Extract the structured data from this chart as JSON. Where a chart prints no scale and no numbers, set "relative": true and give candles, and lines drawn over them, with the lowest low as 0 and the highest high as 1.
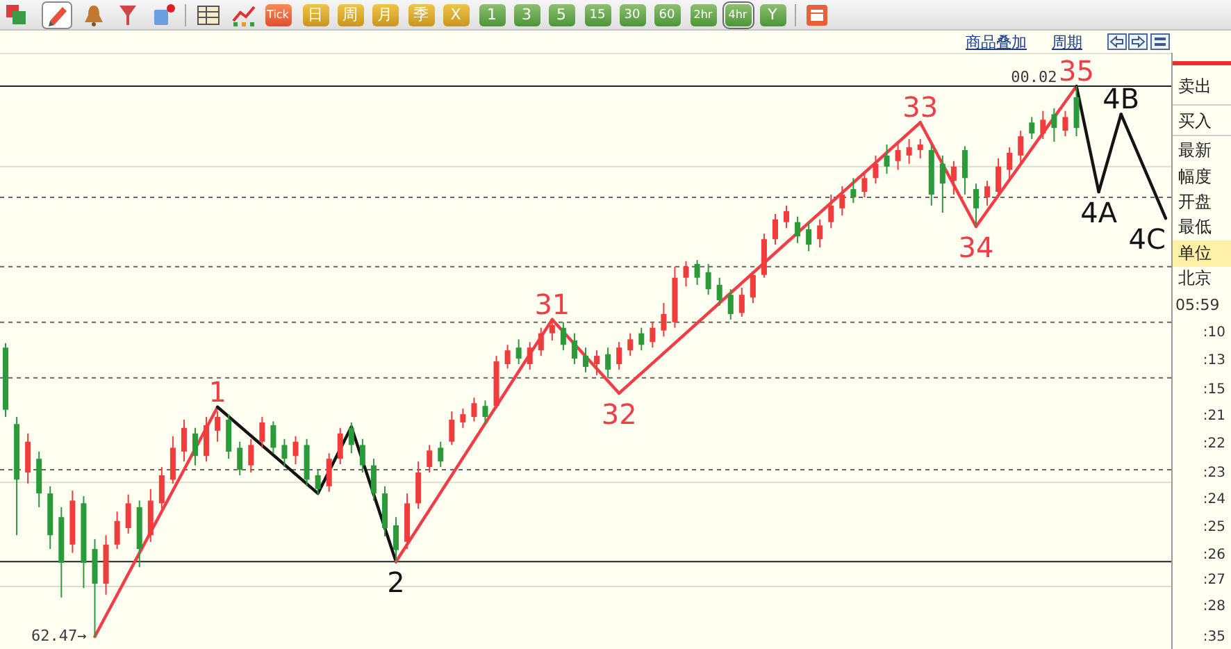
{
  "chart_data": {
    "type": "candlestick",
    "relative": true,
    "categories": [
      null,
      null,
      null,
      null,
      null,
      null,
      null,
      null,
      null,
      null,
      null,
      null,
      null,
      null,
      null,
      null,
      null,
      null,
      null,
      null,
      null,
      null,
      null,
      null,
      null,
      null,
      null,
      null,
      null,
      null,
      null,
      null,
      null,
      null,
      null,
      null,
      null,
      null,
      null,
      null,
      null,
      null,
      null,
      null,
      null,
      null,
      null,
      null,
      null,
      null,
      null,
      null,
      null,
      null,
      null,
      null,
      null,
      null,
      null,
      null,
      null,
      null,
      null,
      null,
      null,
      null,
      null,
      null,
      null,
      null,
      null,
      null,
      null,
      null,
      null,
      null,
      null,
      null,
      null,
      null,
      null,
      null,
      null,
      null,
      null,
      null,
      null,
      null,
      null,
      null,
      null,
      null,
      null,
      null,
      null,
      null,
      null,
      null,
      null,
      null,
      null,
      null,
      null,
      null,
      null
    ],
    "ohlc": [
      [
        0.525,
        0.533,
        0.399,
        0.412
      ],
      [
        0.386,
        0.399,
        0.184,
        0.285
      ],
      [
        0.298,
        0.369,
        0.278,
        0.354
      ],
      [
        0.323,
        0.336,
        0.235,
        0.26
      ],
      [
        0.26,
        0.273,
        0.159,
        0.184
      ],
      [
        0.217,
        0.235,
        0.071,
        0.134
      ],
      [
        0.167,
        0.265,
        0.152,
        0.247
      ],
      [
        0.242,
        0.255,
        0.088,
        0.134
      ],
      [
        0.159,
        0.177,
        0,
        0.096
      ],
      [
        0.096,
        0.184,
        0.076,
        0.167
      ],
      [
        0.167,
        0.227,
        0.159,
        0.21
      ],
      [
        0.197,
        0.258,
        0.187,
        0.242
      ],
      [
        0.235,
        0.247,
        0.126,
        0.159
      ],
      [
        0.184,
        0.268,
        0.172,
        0.247
      ],
      [
        0.242,
        0.308,
        0.232,
        0.293
      ],
      [
        0.285,
        0.364,
        0.278,
        0.343
      ],
      [
        0.336,
        0.394,
        0.318,
        0.379
      ],
      [
        0.369,
        0.379,
        0.311,
        0.328
      ],
      [
        0.328,
        0.399,
        0.318,
        0.384
      ],
      [
        0.374,
        0.409,
        0.354,
        0.399
      ],
      [
        0.394,
        0.404,
        0.323,
        0.336
      ],
      [
        0.343,
        0.354,
        0.293,
        0.303
      ],
      [
        0.311,
        0.359,
        0.298,
        0.348
      ],
      [
        0.354,
        0.399,
        0.343,
        0.389
      ],
      [
        0.384,
        0.391,
        0.333,
        0.343
      ],
      [
        0.348,
        0.359,
        0.308,
        0.323
      ],
      [
        0.328,
        0.364,
        0.313,
        0.354
      ],
      [
        0.348,
        0.359,
        0.273,
        0.285
      ],
      [
        0.293,
        0.303,
        0.258,
        0.268
      ],
      [
        0.273,
        0.333,
        0.263,
        0.323
      ],
      [
        0.323,
        0.379,
        0.313,
        0.369
      ],
      [
        0.379,
        0.389,
        0.333,
        0.348
      ],
      [
        0.348,
        0.359,
        0.298,
        0.311
      ],
      [
        0.311,
        0.323,
        0.247,
        0.26
      ],
      [
        0.26,
        0.273,
        0.182,
        0.197
      ],
      [
        0.202,
        0.217,
        0.136,
        0.157
      ],
      [
        0.172,
        0.26,
        0.159,
        0.242
      ],
      [
        0.242,
        0.318,
        0.232,
        0.298
      ],
      [
        0.308,
        0.348,
        0.298,
        0.338
      ],
      [
        0.343,
        0.354,
        0.308,
        0.318
      ],
      [
        0.354,
        0.409,
        0.348,
        0.394
      ],
      [
        0.389,
        0.414,
        0.379,
        0.404
      ],
      [
        0.399,
        0.434,
        0.391,
        0.424
      ],
      [
        0.419,
        0.429,
        0.386,
        0.399
      ],
      [
        0.419,
        0.51,
        0.414,
        0.5
      ],
      [
        0.495,
        0.53,
        0.487,
        0.52
      ],
      [
        0.525,
        0.54,
        0.495,
        0.505
      ],
      [
        0.495,
        0.535,
        0.485,
        0.525
      ],
      [
        0.52,
        0.561,
        0.51,
        0.551
      ],
      [
        0.551,
        0.576,
        0.538,
        0.566
      ],
      [
        0.561,
        0.571,
        0.52,
        0.53
      ],
      [
        0.538,
        0.551,
        0.495,
        0.505
      ],
      [
        0.51,
        0.525,
        0.48,
        0.49
      ],
      [
        0.495,
        0.52,
        0.475,
        0.51
      ],
      [
        0.513,
        0.525,
        0.47,
        0.485
      ],
      [
        0.495,
        0.535,
        0.485,
        0.525
      ],
      [
        0.52,
        0.551,
        0.51,
        0.54
      ],
      [
        0.551,
        0.561,
        0.52,
        0.53
      ],
      [
        0.535,
        0.571,
        0.525,
        0.561
      ],
      [
        0.556,
        0.606,
        0.545,
        0.586
      ],
      [
        0.571,
        0.672,
        0.561,
        0.652
      ],
      [
        0.652,
        0.682,
        0.636,
        0.672
      ],
      [
        0.677,
        0.684,
        0.639,
        0.652
      ],
      [
        0.662,
        0.677,
        0.621,
        0.631
      ],
      [
        0.639,
        0.652,
        0.601,
        0.611
      ],
      [
        0.621,
        0.631,
        0.576,
        0.586
      ],
      [
        0.588,
        0.634,
        0.581,
        0.621
      ],
      [
        0.616,
        0.664,
        0.606,
        0.657
      ],
      [
        0.657,
        0.732,
        0.652,
        0.722
      ],
      [
        0.722,
        0.768,
        0.712,
        0.758
      ],
      [
        0.753,
        0.783,
        0.742,
        0.773
      ],
      [
        0.753,
        0.763,
        0.715,
        0.727
      ],
      [
        0.74,
        0.753,
        0.7,
        0.712
      ],
      [
        0.722,
        0.758,
        0.707,
        0.747
      ],
      [
        0.753,
        0.803,
        0.742,
        0.783
      ],
      [
        0.778,
        0.818,
        0.765,
        0.803
      ],
      [
        0.813,
        0.833,
        0.788,
        0.798
      ],
      [
        0.808,
        0.843,
        0.798,
        0.833
      ],
      [
        0.833,
        0.874,
        0.823,
        0.859
      ],
      [
        0.874,
        0.894,
        0.841,
        0.854
      ],
      [
        0.864,
        0.899,
        0.848,
        0.884
      ],
      [
        0.874,
        0.904,
        0.859,
        0.889
      ],
      [
        0.884,
        0.904,
        0.869,
        0.894
      ],
      [
        0.884,
        0.894,
        0.783,
        0.803
      ],
      [
        0.859,
        0.874,
        0.77,
        0.823
      ],
      [
        0.828,
        0.864,
        0.803,
        0.854
      ],
      [
        0.884,
        0.891,
        0.803,
        0.833
      ],
      [
        0.813,
        0.823,
        0.747,
        0.778
      ],
      [
        0.798,
        0.828,
        0.783,
        0.818
      ],
      [
        0.808,
        0.869,
        0.798,
        0.854
      ],
      [
        0.848,
        0.889,
        0.828,
        0.879
      ],
      [
        0.874,
        0.919,
        0.859,
        0.909
      ],
      [
        0.934,
        0.944,
        0.904,
        0.914
      ],
      [
        0.914,
        0.955,
        0.904,
        0.939
      ],
      [
        0.949,
        0.96,
        0.899,
        0.924
      ],
      [
        0.919,
        0.955,
        0.909,
        0.944
      ],
      [
        0.98,
        1,
        0.909,
        0.924
      ],
      null,
      null,
      null,
      null,
      null,
      null,
      null,
      null
    ],
    "colors": [
      "#2b9a3a",
      "#2b9a3a",
      "#f03c3c",
      "#2b9a3a",
      "#2b9a3a",
      "#2b9a3a",
      "#f03c3c",
      "#2b9a3a",
      "#2b9a3a",
      "#f03c3c",
      "#f03c3c",
      "#f03c3c",
      "#2b9a3a",
      "#f03c3c",
      "#f03c3c",
      "#f03c3c",
      "#f03c3c",
      "#2b9a3a",
      "#f03c3c",
      "#f03c3c",
      "#2b9a3a",
      "#2b9a3a",
      "#f03c3c",
      "#f03c3c",
      "#2b9a3a",
      "#2b9a3a",
      "#f03c3c",
      "#2b9a3a",
      "#2b9a3a",
      "#f03c3c",
      "#f03c3c",
      "#2b9a3a",
      "#2b9a3a",
      "#2b9a3a",
      "#2b9a3a",
      "#2b9a3a",
      "#f03c3c",
      "#f03c3c",
      "#f03c3c",
      "#2b9a3a",
      "#f03c3c",
      "#f03c3c",
      "#f03c3c",
      "#2b9a3a",
      "#f03c3c",
      "#f03c3c",
      "#2b9a3a",
      "#f03c3c",
      "#f03c3c",
      "#f03c3c",
      "#2b9a3a",
      "#2b9a3a",
      "#2b9a3a",
      "#f03c3c",
      "#2b9a3a",
      "#f03c3c",
      "#f03c3c",
      "#2b9a3a",
      "#f03c3c",
      "#f03c3c",
      "#f03c3c",
      "#f03c3c",
      "#2b9a3a",
      "#2b9a3a",
      "#2b9a3a",
      "#2b9a3a",
      "#f03c3c",
      "#f03c3c",
      "#f03c3c",
      "#f03c3c",
      "#f03c3c",
      "#2b9a3a",
      "#2b9a3a",
      "#f03c3c",
      "#f03c3c",
      "#f03c3c",
      "#2b9a3a",
      "#f03c3c",
      "#f03c3c",
      "#2b9a3a",
      "#f03c3c",
      "#f03c3c",
      "#f03c3c",
      "#2b9a3a",
      "#2b9a3a",
      "#f03c3c",
      "#2b9a3a",
      "#2b9a3a",
      "#f03c3c",
      "#f03c3c",
      "#f03c3c",
      "#f03c3c",
      "#2b9a3a",
      "#f03c3c",
      "#2b9a3a",
      "#f03c3c",
      "#2b9a3a",
      null,
      null,
      null,
      null,
      null,
      null,
      null,
      null
    ],
    "series": [
      {
        "type": "line",
        "name": "1",
        "color": "#f23c46",
        "values": [
          null,
          null,
          null,
          null,
          null,
          null,
          null,
          null,
          0,
          null,
          null,
          null,
          null,
          null,
          null,
          null,
          null,
          null,
          null,
          0.417,
          null,
          null,
          null,
          null,
          null,
          null,
          null,
          null,
          null,
          null,
          null,
          null,
          null,
          null,
          null,
          null,
          null,
          null,
          null,
          null,
          null,
          null,
          null,
          null,
          null,
          null,
          null,
          null,
          null,
          null,
          null,
          null,
          null,
          null,
          null,
          null,
          null,
          null,
          null,
          null,
          null,
          null,
          null,
          null,
          null,
          null,
          null,
          null,
          null,
          null,
          null,
          null,
          null,
          null,
          null,
          null,
          null,
          null,
          null,
          null,
          null,
          null,
          null,
          null,
          null,
          null,
          null,
          null,
          null,
          null,
          null,
          null,
          null,
          null,
          null,
          null,
          null,
          null,
          null,
          null,
          null,
          null,
          null,
          null,
          null
        ]
      },
      {
        "type": "line",
        "name": "2",
        "color": "#141414",
        "values": [
          null,
          null,
          null,
          null,
          null,
          null,
          null,
          null,
          null,
          null,
          null,
          null,
          null,
          null,
          null,
          null,
          null,
          null,
          null,
          0.417,
          null,
          null,
          null,
          null,
          null,
          null,
          null,
          null,
          0.26,
          null,
          null,
          0.381,
          null,
          null,
          null,
          0.136,
          null,
          null,
          null,
          null,
          null,
          null,
          null,
          null,
          null,
          null,
          null,
          null,
          null,
          null,
          null,
          null,
          null,
          null,
          null,
          null,
          null,
          null,
          null,
          null,
          null,
          null,
          null,
          null,
          null,
          null,
          null,
          null,
          null,
          null,
          null,
          null,
          null,
          null,
          null,
          null,
          null,
          null,
          null,
          null,
          null,
          null,
          null,
          null,
          null,
          null,
          null,
          null,
          null,
          null,
          null,
          null,
          null,
          null,
          null,
          null,
          null,
          null,
          null,
          null,
          null,
          null,
          null,
          null,
          null
        ]
      },
      {
        "type": "line",
        "name": "31",
        "color": "#f23c46",
        "values": [
          null,
          null,
          null,
          null,
          null,
          null,
          null,
          null,
          null,
          null,
          null,
          null,
          null,
          null,
          null,
          null,
          null,
          null,
          null,
          null,
          null,
          null,
          null,
          null,
          null,
          null,
          null,
          null,
          null,
          null,
          null,
          null,
          null,
          null,
          null,
          0.136,
          null,
          null,
          null,
          null,
          null,
          null,
          null,
          null,
          null,
          null,
          null,
          null,
          null,
          0.576,
          null,
          null,
          null,
          null,
          null,
          null,
          null,
          null,
          null,
          null,
          null,
          null,
          null,
          null,
          null,
          null,
          null,
          null,
          null,
          null,
          null,
          null,
          null,
          null,
          null,
          null,
          null,
          null,
          null,
          null,
          null,
          null,
          null,
          null,
          null,
          null,
          null,
          null,
          null,
          null,
          null,
          null,
          null,
          null,
          null,
          null,
          null,
          null,
          null,
          null,
          null,
          null,
          null,
          null,
          null
        ]
      },
      {
        "type": "line",
        "name": "32",
        "color": "#f23c46",
        "values": [
          null,
          null,
          null,
          null,
          null,
          null,
          null,
          null,
          null,
          null,
          null,
          null,
          null,
          null,
          null,
          null,
          null,
          null,
          null,
          null,
          null,
          null,
          null,
          null,
          null,
          null,
          null,
          null,
          null,
          null,
          null,
          null,
          null,
          null,
          null,
          null,
          null,
          null,
          null,
          null,
          null,
          null,
          null,
          null,
          null,
          null,
          null,
          null,
          null,
          0.576,
          null,
          null,
          null,
          null,
          null,
          0.442,
          null,
          null,
          null,
          null,
          null,
          null,
          null,
          null,
          null,
          null,
          null,
          null,
          null,
          null,
          null,
          null,
          null,
          null,
          null,
          null,
          null,
          null,
          null,
          null,
          null,
          null,
          null,
          null,
          null,
          null,
          null,
          null,
          null,
          null,
          null,
          null,
          null,
          null,
          null,
          null,
          null,
          null,
          null,
          null,
          null,
          null,
          null,
          null,
          null
        ]
      },
      {
        "type": "line",
        "name": "33",
        "color": "#f23c46",
        "values": [
          null,
          null,
          null,
          null,
          null,
          null,
          null,
          null,
          null,
          null,
          null,
          null,
          null,
          null,
          null,
          null,
          null,
          null,
          null,
          null,
          null,
          null,
          null,
          null,
          null,
          null,
          null,
          null,
          null,
          null,
          null,
          null,
          null,
          null,
          null,
          null,
          null,
          null,
          null,
          null,
          null,
          null,
          null,
          null,
          null,
          null,
          null,
          null,
          null,
          null,
          null,
          null,
          null,
          null,
          null,
          0.442,
          null,
          null,
          null,
          null,
          null,
          null,
          null,
          null,
          null,
          null,
          null,
          null,
          null,
          null,
          null,
          null,
          null,
          null,
          null,
          null,
          null,
          null,
          null,
          null,
          null,
          null,
          0.934,
          null,
          null,
          null,
          null,
          null,
          null,
          null,
          null,
          null,
          null,
          null,
          null,
          null,
          null,
          null,
          null,
          null,
          null,
          null,
          null,
          null,
          null
        ]
      },
      {
        "type": "line",
        "name": "34",
        "color": "#f23c46",
        "values": [
          null,
          null,
          null,
          null,
          null,
          null,
          null,
          null,
          null,
          null,
          null,
          null,
          null,
          null,
          null,
          null,
          null,
          null,
          null,
          null,
          null,
          null,
          null,
          null,
          null,
          null,
          null,
          null,
          null,
          null,
          null,
          null,
          null,
          null,
          null,
          null,
          null,
          null,
          null,
          null,
          null,
          null,
          null,
          null,
          null,
          null,
          null,
          null,
          null,
          null,
          null,
          null,
          null,
          null,
          null,
          null,
          null,
          null,
          null,
          null,
          null,
          null,
          null,
          null,
          null,
          null,
          null,
          null,
          null,
          null,
          null,
          null,
          null,
          null,
          null,
          null,
          null,
          null,
          null,
          null,
          null,
          null,
          0.934,
          null,
          null,
          null,
          null,
          0.745,
          null,
          null,
          null,
          null,
          null,
          null,
          null,
          null,
          null,
          null,
          null,
          null,
          null,
          null,
          null,
          null,
          null
        ]
      },
      {
        "type": "line",
        "name": "35",
        "color": "#f23c46",
        "values": [
          null,
          null,
          null,
          null,
          null,
          null,
          null,
          null,
          null,
          null,
          null,
          null,
          null,
          null,
          null,
          null,
          null,
          null,
          null,
          null,
          null,
          null,
          null,
          null,
          null,
          null,
          null,
          null,
          null,
          null,
          null,
          null,
          null,
          null,
          null,
          null,
          null,
          null,
          null,
          null,
          null,
          null,
          null,
          null,
          null,
          null,
          null,
          null,
          null,
          null,
          null,
          null,
          null,
          null,
          null,
          null,
          null,
          null,
          null,
          null,
          null,
          null,
          null,
          null,
          null,
          null,
          null,
          null,
          null,
          null,
          null,
          null,
          null,
          null,
          null,
          null,
          null,
          null,
          null,
          null,
          null,
          null,
          null,
          null,
          null,
          null,
          null,
          0.745,
          null,
          null,
          null,
          null,
          null,
          null,
          null,
          null,
          1,
          null,
          null,
          null,
          null,
          null,
          null,
          null,
          null
        ]
      },
      {
        "type": "line",
        "name": "4A",
        "color": "#141414",
        "values": [
          null,
          null,
          null,
          null,
          null,
          null,
          null,
          null,
          null,
          null,
          null,
          null,
          null,
          null,
          null,
          null,
          null,
          null,
          null,
          null,
          null,
          null,
          null,
          null,
          null,
          null,
          null,
          null,
          null,
          null,
          null,
          null,
          null,
          null,
          null,
          null,
          null,
          null,
          null,
          null,
          null,
          null,
          null,
          null,
          null,
          null,
          null,
          null,
          null,
          null,
          null,
          null,
          null,
          null,
          null,
          null,
          null,
          null,
          null,
          null,
          null,
          null,
          null,
          null,
          null,
          null,
          null,
          null,
          null,
          null,
          null,
          null,
          null,
          null,
          null,
          null,
          null,
          null,
          null,
          null,
          null,
          null,
          null,
          null,
          null,
          null,
          null,
          null,
          null,
          null,
          null,
          null,
          null,
          null,
          null,
          null,
          1,
          null,
          0.808,
          null,
          null,
          null,
          null,
          null,
          null
        ]
      },
      {
        "type": "line",
        "name": "4B",
        "color": "#141414",
        "values": [
          null,
          null,
          null,
          null,
          null,
          null,
          null,
          null,
          null,
          null,
          null,
          null,
          null,
          null,
          null,
          null,
          null,
          null,
          null,
          null,
          null,
          null,
          null,
          null,
          null,
          null,
          null,
          null,
          null,
          null,
          null,
          null,
          null,
          null,
          null,
          null,
          null,
          null,
          null,
          null,
          null,
          null,
          null,
          null,
          null,
          null,
          null,
          null,
          null,
          null,
          null,
          null,
          null,
          null,
          null,
          null,
          null,
          null,
          null,
          null,
          null,
          null,
          null,
          null,
          null,
          null,
          null,
          null,
          null,
          null,
          null,
          null,
          null,
          null,
          null,
          null,
          null,
          null,
          null,
          null,
          null,
          null,
          null,
          null,
          null,
          null,
          null,
          null,
          null,
          null,
          null,
          null,
          null,
          null,
          null,
          null,
          null,
          null,
          0.808,
          null,
          0.949,
          null,
          null,
          null,
          null
        ]
      },
      {
        "type": "line",
        "name": "4C",
        "color": "#141414",
        "values": [
          null,
          null,
          null,
          null,
          null,
          null,
          null,
          null,
          null,
          null,
          null,
          null,
          null,
          null,
          null,
          null,
          null,
          null,
          null,
          null,
          null,
          null,
          null,
          null,
          null,
          null,
          null,
          null,
          null,
          null,
          null,
          null,
          null,
          null,
          null,
          null,
          null,
          null,
          null,
          null,
          null,
          null,
          null,
          null,
          null,
          null,
          null,
          null,
          null,
          null,
          null,
          null,
          null,
          null,
          null,
          null,
          null,
          null,
          null,
          null,
          null,
          null,
          null,
          null,
          null,
          null,
          null,
          null,
          null,
          null,
          null,
          null,
          null,
          null,
          null,
          null,
          null,
          null,
          null,
          null,
          null,
          null,
          null,
          null,
          null,
          null,
          null,
          null,
          null,
          null,
          null,
          null,
          null,
          null,
          null,
          null,
          null,
          null,
          null,
          null,
          0.949,
          null,
          null,
          null,
          0.76
        ]
      }
    ],
    "ref_lines": [
      {
        "axis": "y",
        "value": 1,
        "color": "#222222",
        "line_style": "solid"
      },
      {
        "axis": "y",
        "value": 0.854,
        "color": "#dcdcd0",
        "line_style": "solid"
      },
      {
        "axis": "y",
        "value": 0.798,
        "color": "#666666",
        "line_style": "dashed"
      },
      {
        "axis": "y",
        "value": 0.672,
        "color": "#666666",
        "line_style": "dashed"
      },
      {
        "axis": "y",
        "value": 0.571,
        "color": "#666666",
        "line_style": "dashed"
      },
      {
        "axis": "y",
        "value": 0.47,
        "color": "#666666",
        "line_style": "dashed"
      },
      {
        "axis": "y",
        "value": 0.303,
        "color": "#666666",
        "line_style": "dashed"
      },
      {
        "axis": "y",
        "value": 0.28,
        "color": "#dcdcd0",
        "line_style": "solid"
      },
      {
        "axis": "y",
        "value": 0.136,
        "color": "#222222",
        "line_style": "solid"
      },
      {
        "axis": "y",
        "value": 0.091,
        "color": "#dcdcd0",
        "line_style": "solid"
      }
    ],
    "annotations": [
      "Tick",
      "日",
      "周",
      "月",
      "季",
      "X",
      "1",
      "3",
      "5",
      "15",
      "30",
      "60",
      "2hr",
      "4hr",
      "Y",
      "商品叠加",
      "周期",
      "卖出",
      "买入",
      "最新",
      "幅度",
      "开盘",
      "最低",
      "单位",
      "北京",
      "05:59",
      ":10",
      ":13",
      ":15",
      ":21",
      ":22",
      ":23",
      ":24",
      ":25",
      ":26",
      ":27",
      ":28",
      ":35",
      "62.47→",
      "00.02"
    ]
  }
}
